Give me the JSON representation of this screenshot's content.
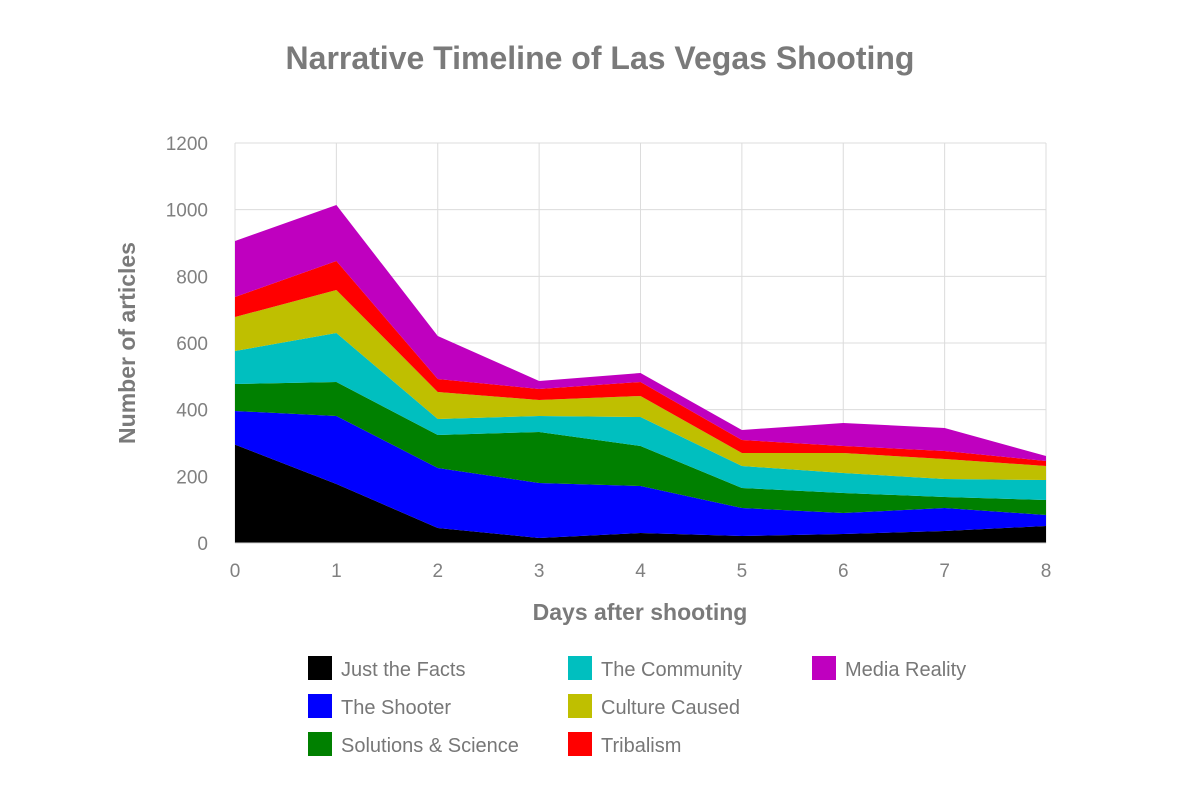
{
  "chart_data": {
    "type": "area",
    "stacked": true,
    "title": "Narrative Timeline of Las Vegas Shooting",
    "xlabel": "Days after shooting",
    "ylabel": "Number of articles",
    "x": [
      0,
      1,
      2,
      3,
      4,
      5,
      6,
      7,
      8
    ],
    "xlim": [
      0,
      8
    ],
    "ylim": [
      0,
      1200
    ],
    "yticks": [
      0,
      200,
      400,
      600,
      800,
      1000,
      1200
    ],
    "grid": true,
    "legend_position": "bottom",
    "series": [
      {
        "name": "Just the Facts",
        "color": "#000000",
        "values": [
          295,
          177,
          45,
          15,
          30,
          21,
          27,
          36,
          51
        ]
      },
      {
        "name": "The Shooter",
        "color": "#0000ff",
        "values": [
          101,
          204,
          180,
          165,
          141,
          84,
          63,
          69,
          33
        ]
      },
      {
        "name": "Solutions & Science",
        "color": "#008000",
        "values": [
          81,
          102,
          99,
          153,
          120,
          60,
          60,
          33,
          45
        ]
      },
      {
        "name": "The Community",
        "color": "#00bfbf",
        "values": [
          99,
          147,
          48,
          48,
          87,
          66,
          60,
          54,
          60
        ]
      },
      {
        "name": "Culture Caused",
        "color": "#bfbf00",
        "values": [
          102,
          129,
          81,
          48,
          63,
          39,
          60,
          60,
          42
        ]
      },
      {
        "name": "Tribalism",
        "color": "#ff0000",
        "values": [
          60,
          87,
          39,
          33,
          42,
          39,
          21,
          24,
          15
        ]
      },
      {
        "name": "Media Reality",
        "color": "#bf00bf",
        "values": [
          168,
          168,
          129,
          24,
          27,
          30,
          69,
          69,
          15
        ]
      }
    ]
  }
}
